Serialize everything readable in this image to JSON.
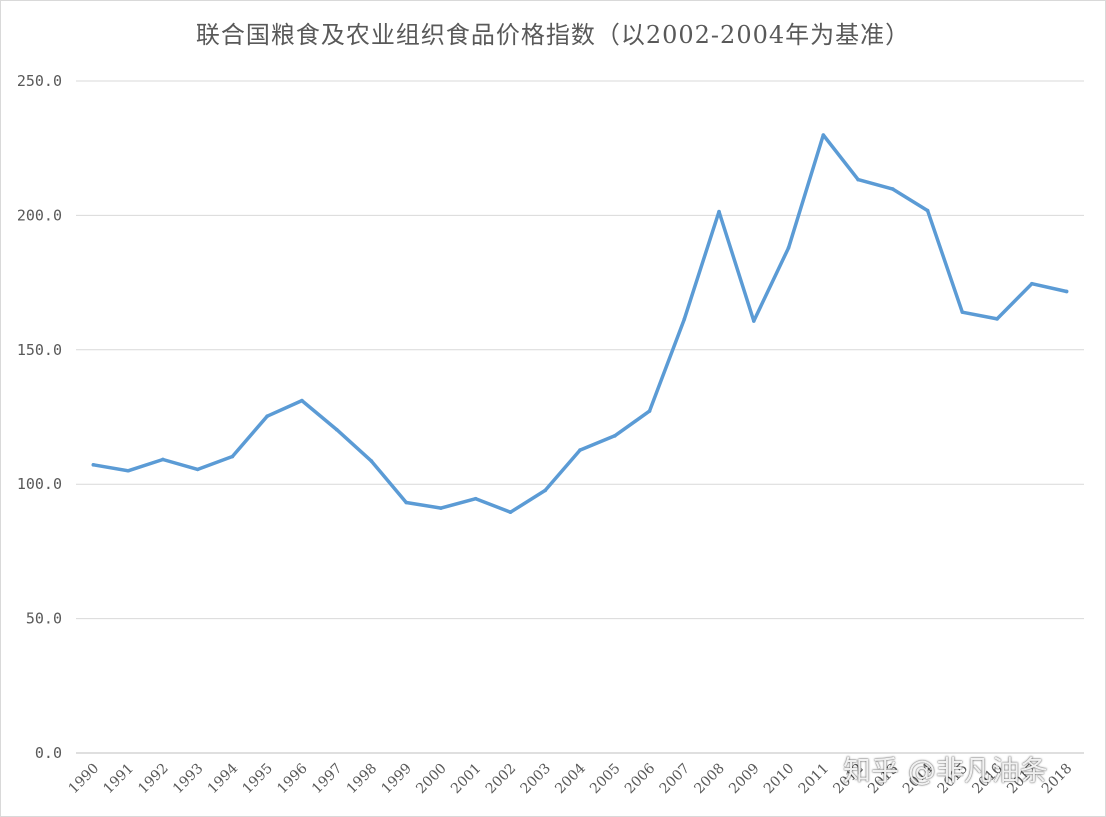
{
  "chart_data": {
    "type": "line",
    "title": "联合国粮食及农业组织食品价格指数（以2002-2004年为基准）",
    "xlabel": "",
    "ylabel": "",
    "x": [
      "1990",
      "1991",
      "1992",
      "1993",
      "1994",
      "1995",
      "1996",
      "1997",
      "1998",
      "1999",
      "2000",
      "2001",
      "2002",
      "2003",
      "2004",
      "2005",
      "2006",
      "2007",
      "2008",
      "2009",
      "2010",
      "2011",
      "2012",
      "2013",
      "2014",
      "2015",
      "2016",
      "2017",
      "2018"
    ],
    "series": [
      {
        "color": "#5b9bd5",
        "values": [
          107.2,
          105.0,
          109.2,
          105.5,
          110.3,
          125.3,
          131.1,
          120.3,
          108.6,
          93.2,
          91.1,
          94.6,
          89.6,
          97.7,
          112.7,
          118.0,
          127.2,
          161.4,
          201.4,
          160.7,
          188.0,
          229.9,
          213.3,
          209.8,
          201.8,
          164.0,
          161.5,
          174.6,
          171.7
        ]
      }
    ],
    "y_ticks": [
      "0.0",
      "50.0",
      "100.0",
      "150.0",
      "200.0",
      "250.0"
    ],
    "ylim": [
      0,
      250
    ],
    "grid": true,
    "legend": "none"
  },
  "watermark": {
    "text": "知乎 @非凡油条"
  }
}
